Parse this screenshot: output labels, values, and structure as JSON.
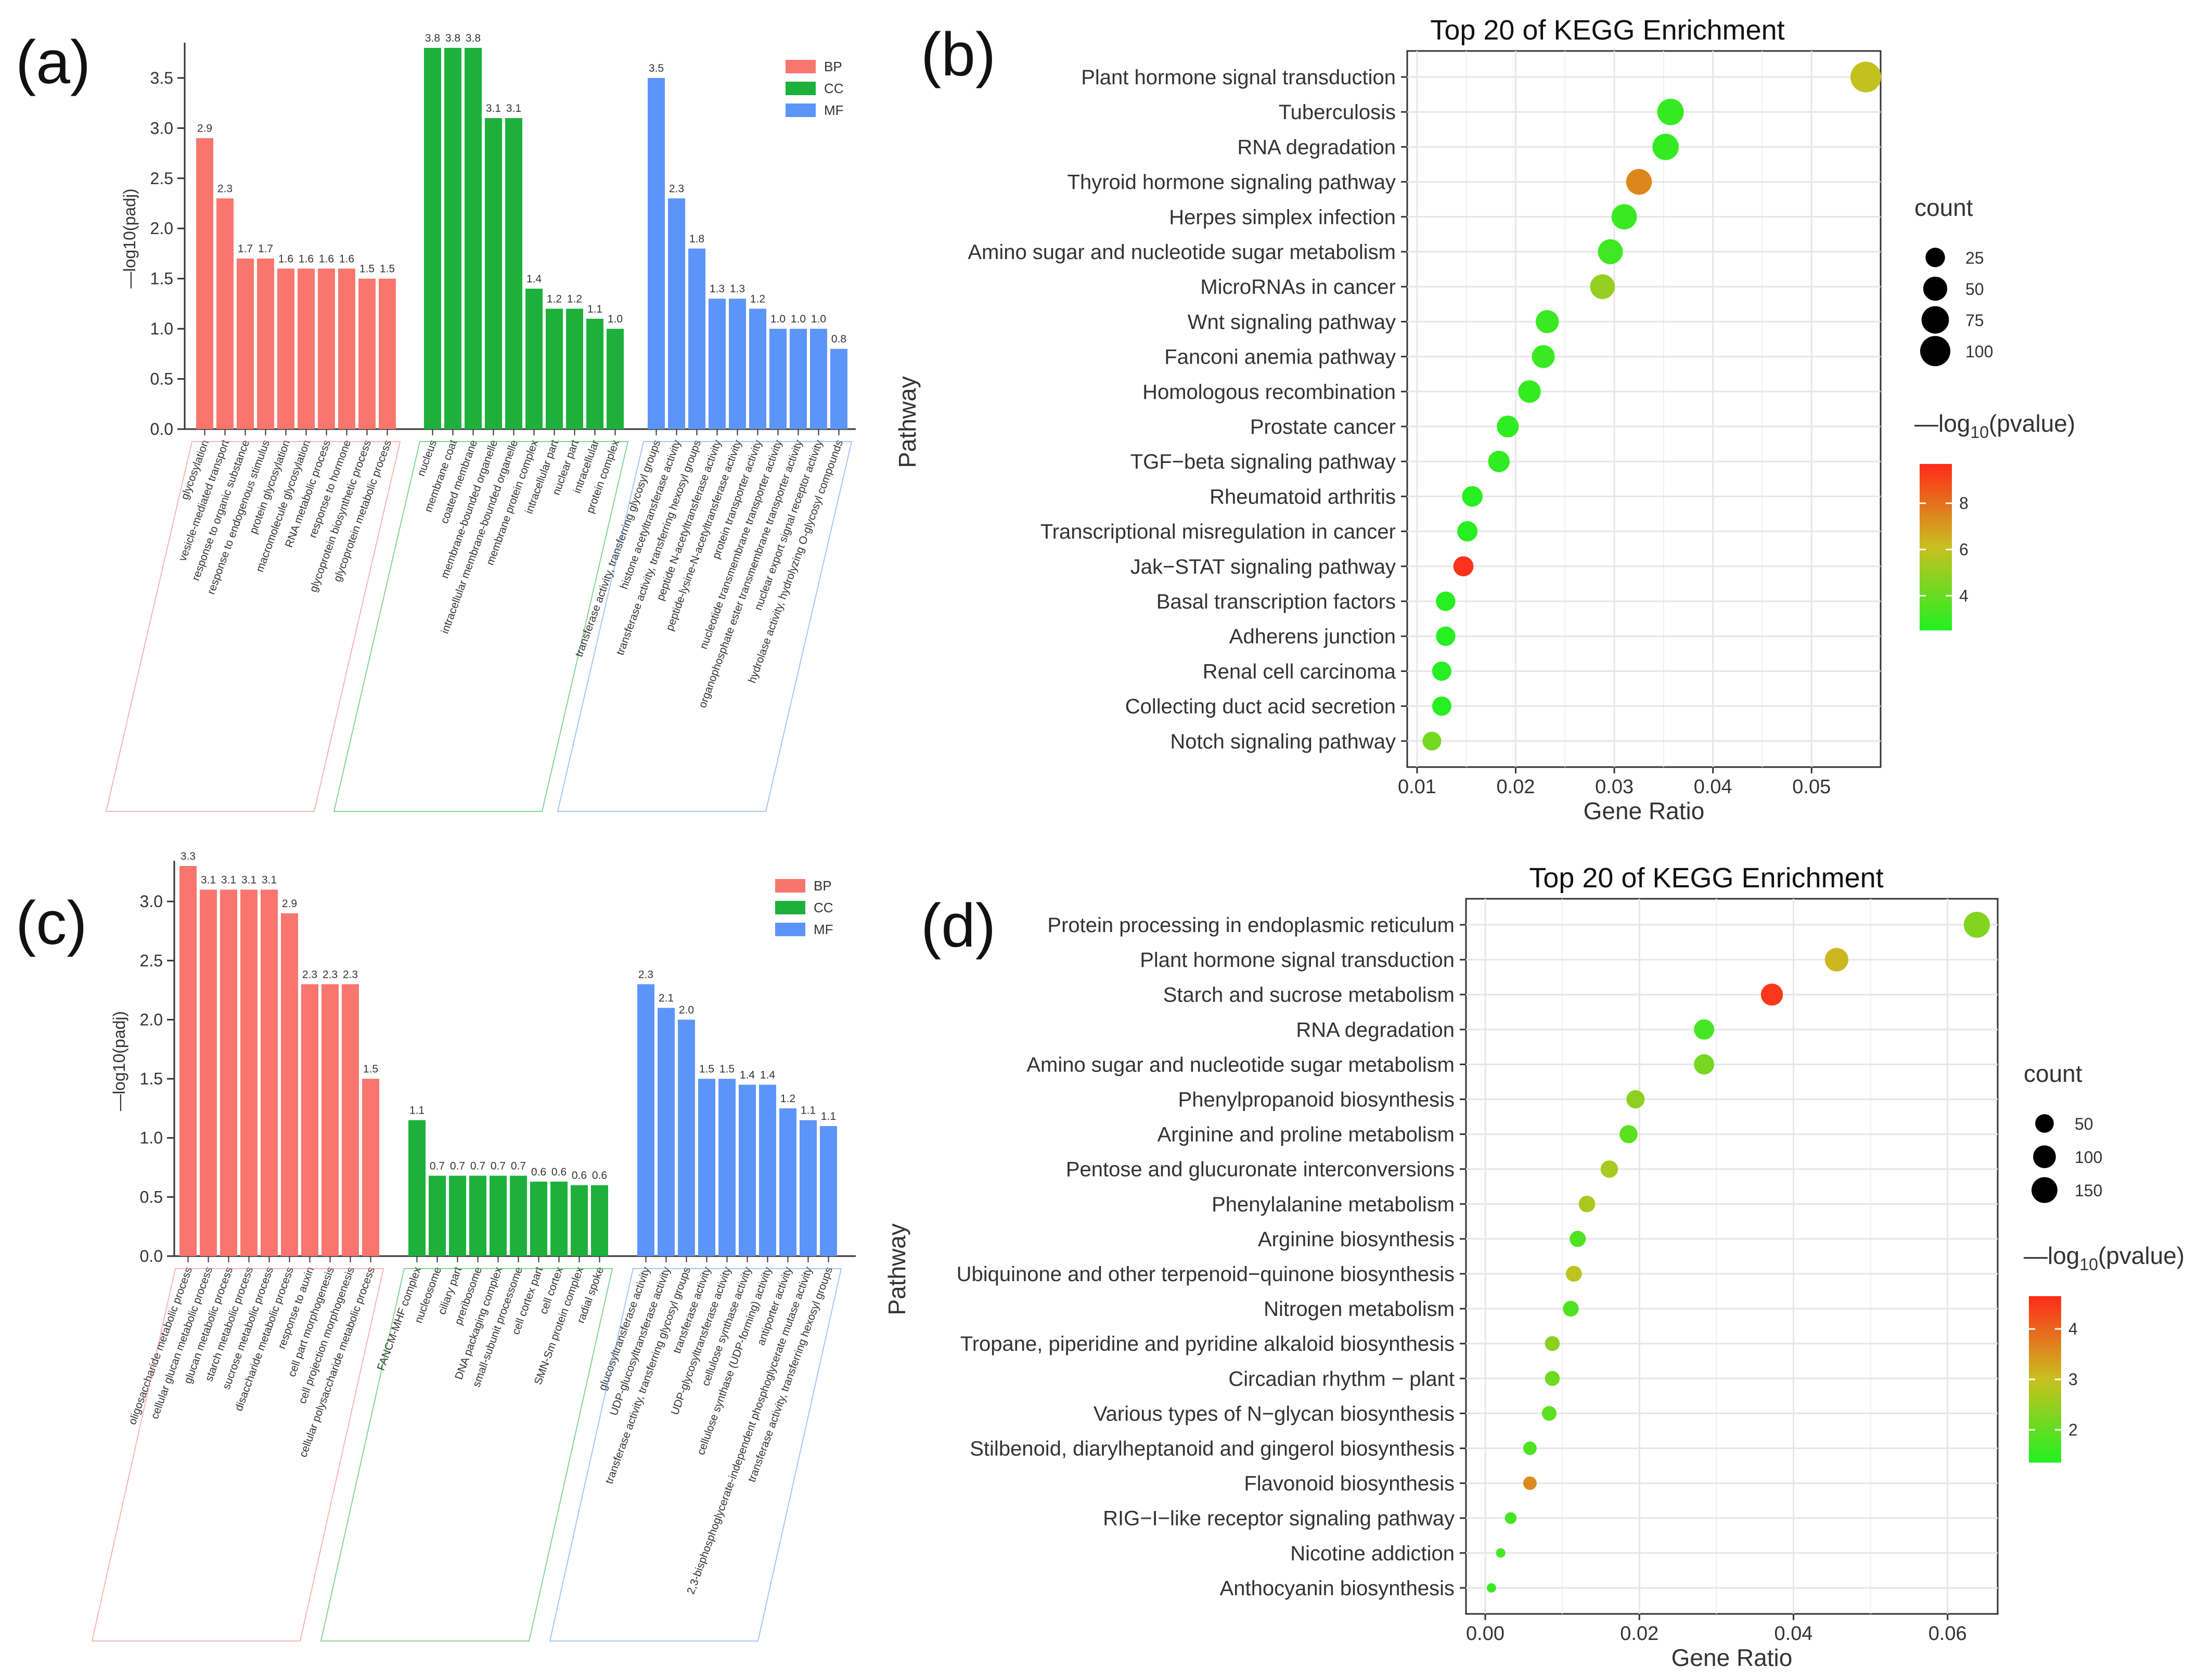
{
  "panel_labels": [
    "(a)",
    "(b)",
    "(c)",
    "(d)"
  ],
  "colors": {
    "BP": "#F8766D",
    "CC": "#1DB13B",
    "MF": "#5C95FA",
    "low": "#22F022",
    "mid": "#C8C020",
    "high": "#FF2A1A"
  },
  "chart_data": [
    {
      "panel": "(a)",
      "type": "bar",
      "title": "",
      "ylabel": "—log10(padj)",
      "ylim": [
        0,
        3.8
      ],
      "yticks": [
        "0.0",
        "0.5",
        "1.0",
        "1.5",
        "2.0",
        "2.5",
        "3.0",
        "3.5"
      ],
      "legend": [
        "BP",
        "CC",
        "MF"
      ],
      "groups": [
        {
          "name": "BP",
          "categories": [
            "glycosylation",
            "vesicle-mediated transport",
            "response to organic substance",
            "response to endogenous stimulus",
            "protein glycosylation",
            "macromolecule glycosylation",
            "RNA metabolic process",
            "response to hormone",
            "glycoprotein biosynthetic process",
            "glycoprotein metabolic process"
          ],
          "values": [
            2.9,
            2.3,
            1.7,
            1.7,
            1.6,
            1.6,
            1.6,
            1.6,
            1.5,
            1.5
          ],
          "labels": [
            "2.9",
            "2.3",
            "1.7",
            "1.7",
            "1.6",
            "1.6",
            "1.6",
            "1.6",
            "1.5",
            "1.5"
          ]
        },
        {
          "name": "CC",
          "categories": [
            "nucleus",
            "membrane coat",
            "coated membrane",
            "membrane-bounded organelle",
            "intracellular membrane-bounded organelle",
            "membrane protein complex",
            "intracellular part",
            "nuclear part",
            "intracellular",
            "protein complex"
          ],
          "values": [
            3.8,
            3.8,
            3.8,
            3.1,
            3.1,
            1.4,
            1.2,
            1.2,
            1.1,
            1.0
          ],
          "labels": [
            "3.8",
            "3.8",
            "3.8",
            "3.1",
            "3.1",
            "1.4",
            "1.2",
            "1.2",
            "1.1",
            "1.0"
          ]
        },
        {
          "name": "MF",
          "categories": [
            "transferase activity, transferring glycosyl groups",
            "histone acetyltransferase activity",
            "transferase activity, transferring hexosyl groups",
            "peptide N-acetyltransferase activity",
            "peptide-lysine-N-acetyltransferase activity",
            "protein transporter activity",
            "nucleotide transmembrane transporter activity",
            "organophosphate ester transmembrane transporter activity",
            "nuclear export signal receptor activity",
            "hydrolase activity, hydrolyzing O-glycosyl compounds"
          ],
          "values": [
            3.5,
            2.3,
            1.8,
            1.3,
            1.3,
            1.2,
            1.0,
            1.0,
            1.0,
            0.8
          ],
          "labels": [
            "3.5",
            "2.3",
            "1.8",
            "1.3",
            "1.3",
            "1.2",
            "1.0",
            "1.0",
            "1.0",
            "0.8"
          ]
        }
      ]
    },
    {
      "panel": "(b)",
      "type": "scatter",
      "title": "Top 20 of KEGG Enrichment",
      "xlabel": "Gene Ratio",
      "ylabel": "Pathway",
      "xlim": [
        0.009,
        0.057
      ],
      "xticks": [
        0.01,
        0.02,
        0.03,
        0.04,
        0.05
      ],
      "xtick_labels": [
        "0.01",
        "0.02",
        "0.03",
        "0.04",
        "0.05"
      ],
      "size_legend_title": "count",
      "size_legend": [
        25,
        50,
        75,
        100
      ],
      "size_range": [
        5,
        110
      ],
      "color_legend_title": "—log",
      "color_legend_sub": "10",
      "color_legend_suffix": "(pvalue)",
      "color_legend_ticks": [
        4,
        6,
        8
      ],
      "color_range": [
        2.5,
        9.7
      ],
      "pathways": [
        "Plant hormone signal transduction",
        "Tuberculosis",
        "RNA degradation",
        "Thyroid hormone signaling pathway",
        "Herpes simplex infection",
        "Amino sugar and nucleotide sugar metabolism",
        "MicroRNAs in cancer",
        "Wnt signaling pathway",
        "Fanconi anemia pathway",
        "Homologous recombination",
        "Prostate cancer",
        "TGF−beta signaling pathway",
        "Rheumatoid arthritis",
        "Transcriptional misregulation in cancer",
        "Jak−STAT signaling pathway",
        "Basal transcription factors",
        "Adherens junction",
        "Renal cell carcinoma",
        "Collecting duct acid secretion",
        "Notch signaling pathway"
      ],
      "gene_ratio": [
        0.0555,
        0.0357,
        0.0352,
        0.0325,
        0.031,
        0.0296,
        0.0288,
        0.0232,
        0.0228,
        0.0214,
        0.0192,
        0.0183,
        0.0156,
        0.0151,
        0.0147,
        0.0129,
        0.0129,
        0.0125,
        0.0125,
        0.0115
      ],
      "count": [
        105,
        68,
        67,
        62,
        59,
        56,
        55,
        44,
        43,
        41,
        37,
        35,
        30,
        29,
        28,
        25,
        25,
        24,
        24,
        22
      ],
      "neg_log10_pvalue": [
        6.0,
        2.9,
        2.9,
        7.5,
        3.0,
        3.1,
        5.0,
        3.0,
        3.0,
        2.9,
        2.8,
        2.8,
        2.6,
        2.6,
        9.5,
        2.6,
        2.6,
        2.6,
        2.6,
        4.3
      ]
    },
    {
      "panel": "(c)",
      "type": "bar",
      "title": "",
      "ylabel": "—log10(padj)",
      "ylim": [
        0,
        3.3
      ],
      "yticks": [
        "0.0",
        "0.5",
        "1.0",
        "1.5",
        "2.0",
        "2.5",
        "3.0"
      ],
      "legend": [
        "BP",
        "CC",
        "MF"
      ],
      "groups": [
        {
          "name": "BP",
          "categories": [
            "oligosaccharide metabolic process",
            "cellular glucan metabolic process",
            "glucan metabolic process",
            "starch metabolic process",
            "sucrose metabolic process",
            "disaccharide metabolic process",
            "response to auxin",
            "cell part morphogenesis",
            "cell projection morphogenesis",
            "cellular polysaccharide metabolic process"
          ],
          "values": [
            3.3,
            3.1,
            3.1,
            3.1,
            3.1,
            2.9,
            2.3,
            2.3,
            2.3,
            1.5
          ],
          "labels": [
            "3.3",
            "3.1",
            "3.1",
            "3.1",
            "3.1",
            "2.9",
            "2.3",
            "2.3",
            "2.3",
            "1.5"
          ]
        },
        {
          "name": "CC",
          "categories": [
            "FANCM-MHF complex",
            "nucleosome",
            "ciliary part",
            "preribosome",
            "DNA packaging complex",
            "small-subunit processome",
            "cell cortex part",
            "cell cortex",
            "SMN-Sm protein complex",
            "radial spoke"
          ],
          "values": [
            1.15,
            0.68,
            0.68,
            0.68,
            0.68,
            0.68,
            0.63,
            0.63,
            0.6,
            0.6
          ],
          "labels": [
            "1.1",
            "0.7",
            "0.7",
            "0.7",
            "0.7",
            "0.7",
            "0.6",
            "0.6",
            "0.6",
            "0.6"
          ]
        },
        {
          "name": "MF",
          "categories": [
            "glucosyltransferase activity",
            "UDP-glucosyltransferase activity",
            "transferase activity, transferring glycosyl groups",
            "transferase activity",
            "UDP-glycosyltransferase activity",
            "cellulose synthase activity",
            "cellulose synthase (UDP-forming) activity",
            "antiporter activity",
            "2,3-bisphosphoglycerate-independent phosphoglycerate mutase activity",
            "transferase activity, transferring hexosyl groups"
          ],
          "values": [
            2.3,
            2.1,
            2.0,
            1.5,
            1.5,
            1.45,
            1.45,
            1.25,
            1.15,
            1.1
          ],
          "labels": [
            "2.3",
            "2.1",
            "2.0",
            "1.5",
            "1.5",
            "1.4",
            "1.4",
            "1.2",
            "1.1",
            "1.1"
          ]
        }
      ]
    },
    {
      "panel": "(d)",
      "type": "scatter",
      "title": "Top 20 of KEGG Enrichment",
      "xlabel": "Gene Ratio",
      "ylabel": "Pathway",
      "xlim": [
        -0.0025,
        0.0665
      ],
      "xticks": [
        0.0,
        0.02,
        0.04,
        0.06
      ],
      "xtick_labels": [
        "0.00",
        "0.02",
        "0.04",
        "0.06"
      ],
      "size_legend_title": "count",
      "size_legend": [
        50,
        100,
        150
      ],
      "size_range": [
        5,
        190
      ],
      "color_legend_title": "—log",
      "color_legend_sub": "10",
      "color_legend_suffix": "(pvalue)",
      "color_legend_ticks": [
        2,
        3,
        4
      ],
      "color_range": [
        1.35,
        4.65
      ],
      "pathways": [
        "Protein processing in endoplasmic reticulum",
        "Plant hormone signal transduction",
        "Starch and sucrose metabolism",
        "RNA degradation",
        "Amino sugar and nucleotide sugar metabolism",
        "Phenylpropanoid biosynthesis",
        "Arginine and proline metabolism",
        "Pentose and glucuronate interconversions",
        "Phenylalanine metabolism",
        "Arginine biosynthesis",
        "Ubiquinone and other terpenoid−quinone biosynthesis",
        "Nitrogen metabolism",
        "Tropane, piperidine and pyridine alkaloid biosynthesis",
        "Circadian rhythm − plant",
        "Various types of N−glycan biosynthesis",
        "Stilbenoid, diarylheptanoid and gingerol biosynthesis",
        "Flavonoid biosynthesis",
        "RIG−I−like receptor signaling pathway",
        "Nicotine addiction",
        "Anthocyanin biosynthesis"
      ],
      "gene_ratio": [
        0.0638,
        0.0456,
        0.0372,
        0.0284,
        0.0284,
        0.0195,
        0.0186,
        0.0161,
        0.0132,
        0.012,
        0.0115,
        0.0111,
        0.0087,
        0.0087,
        0.0083,
        0.0058,
        0.0058,
        0.0033,
        0.002,
        0.0008
      ],
      "count": [
        152,
        110,
        90,
        68,
        68,
        47,
        45,
        39,
        32,
        29,
        28,
        27,
        21,
        21,
        20,
        14,
        14,
        8,
        5,
        2
      ],
      "neg_log10_pvalue": [
        2.3,
        3.1,
        4.5,
        1.7,
        2.2,
        2.4,
        1.9,
        2.7,
        2.7,
        1.8,
        2.9,
        1.8,
        2.4,
        2.1,
        1.9,
        1.8,
        3.6,
        1.7,
        1.7,
        1.6
      ]
    }
  ]
}
